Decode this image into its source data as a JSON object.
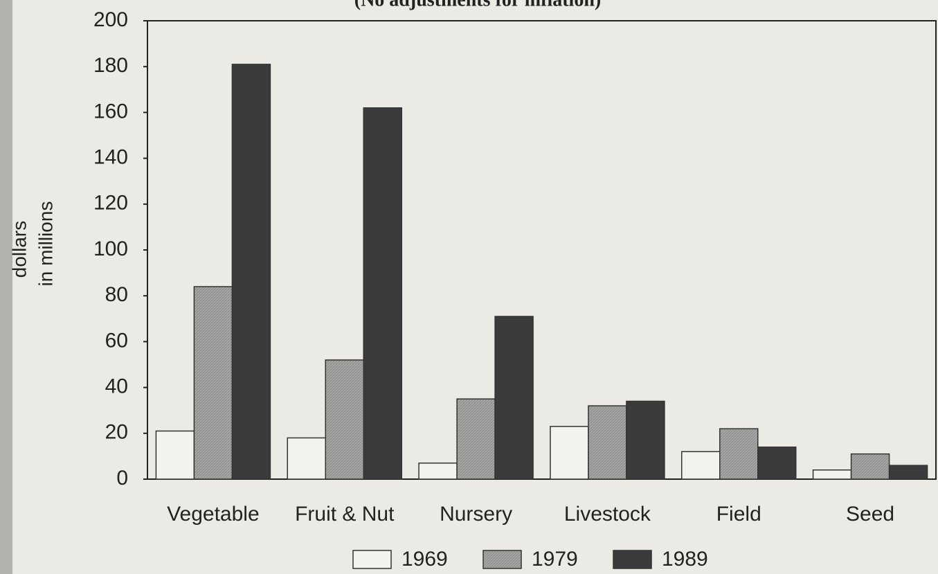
{
  "chart_data": {
    "type": "bar",
    "subtitle": "(No adjustments for inflation)",
    "ylabel": [
      "dollars",
      "in millions"
    ],
    "categories": [
      "Vegetable",
      "Fruit & Nut",
      "Nursery",
      "Livestock",
      "Field",
      "Seed"
    ],
    "series": [
      {
        "name": "1969",
        "color": "#f4f2ec",
        "values": [
          21,
          18,
          7,
          23,
          12,
          4
        ]
      },
      {
        "name": "1979",
        "color": "#a6a6a4",
        "values": [
          84,
          52,
          35,
          32,
          22,
          11
        ]
      },
      {
        "name": "1989",
        "color": "#3b3b3b",
        "values": [
          181,
          162,
          71,
          34,
          14,
          6
        ]
      }
    ],
    "ylim": [
      0,
      200
    ],
    "yticks": [
      0,
      20,
      40,
      60,
      80,
      100,
      120,
      140,
      160,
      180,
      200
    ],
    "legend": "bottom"
  }
}
